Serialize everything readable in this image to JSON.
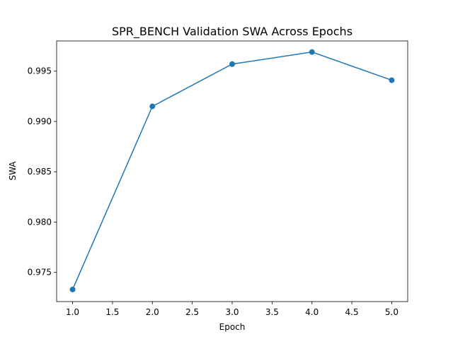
{
  "chart_data": {
    "type": "line",
    "title": "SPR_BENCH Validation SWA Across Epochs",
    "xlabel": "Epoch",
    "ylabel": "SWA",
    "xlim": [
      0.8,
      5.2
    ],
    "ylim": [
      0.9721,
      0.998
    ],
    "x_ticks": [
      1.0,
      1.5,
      2.0,
      2.5,
      3.0,
      3.5,
      4.0,
      4.5,
      5.0
    ],
    "x_tick_labels": [
      "1.0",
      "1.5",
      "2.0",
      "2.5",
      "3.0",
      "3.5",
      "4.0",
      "4.5",
      "5.0"
    ],
    "y_ticks": [
      0.975,
      0.98,
      0.985,
      0.99,
      0.995
    ],
    "y_tick_labels": [
      "0.975",
      "0.980",
      "0.985",
      "0.990",
      "0.995"
    ],
    "grid": false,
    "legend": "none",
    "series": [
      {
        "x": [
          1,
          2,
          3,
          4,
          5
        ],
        "values": [
          0.9733,
          0.9915,
          0.9957,
          0.9969,
          0.9941
        ],
        "marker": "circle",
        "color": "#1f77b4"
      }
    ]
  }
}
